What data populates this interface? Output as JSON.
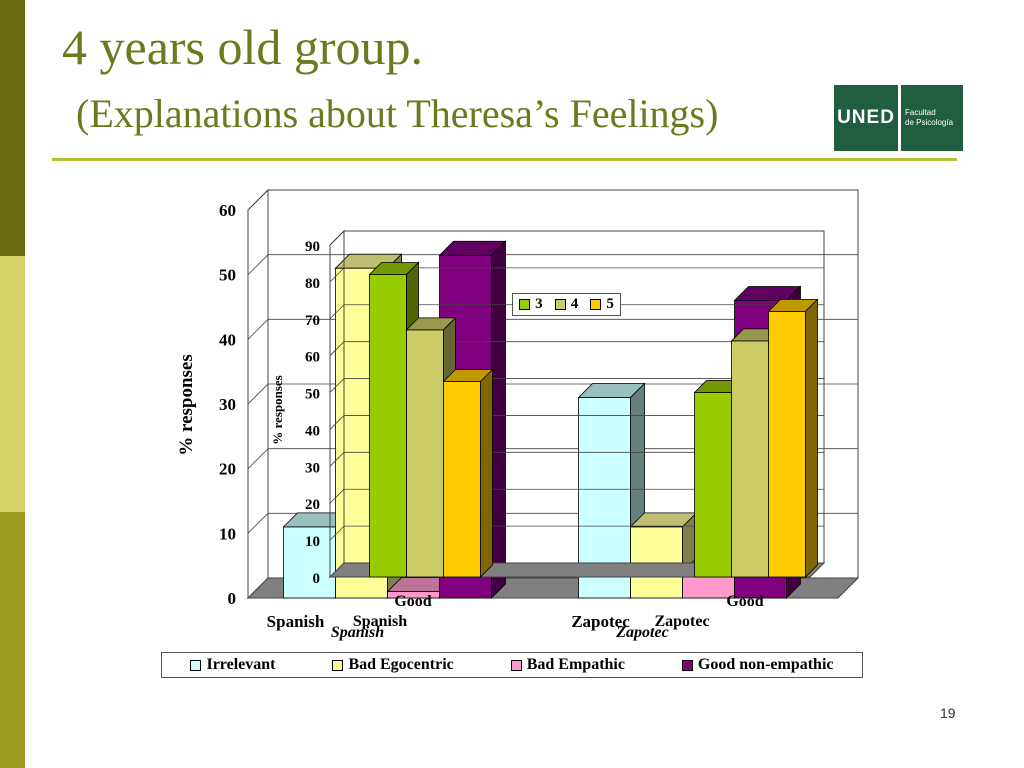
{
  "slide": {
    "title_line1": "4 years old group.",
    "title_line2": "(Explanations about Theresa’s Feelings)",
    "page_number": "19",
    "logo": {
      "mark": "UNED",
      "faculty_line1": "Facultad",
      "faculty_line2": "de Psicología"
    },
    "sidebar_colors": [
      "#6b6b0f",
      "#d4d46a",
      "#9a9a20"
    ],
    "accent_color": "#6b7a1e"
  },
  "chart_data": [
    {
      "type": "bar",
      "style": "3d-clustered",
      "categories": [
        "Spanish",
        "Zapotec"
      ],
      "category_labels_sub": [
        "Spanish",
        "Zapotec"
      ],
      "ylabel": "% responses",
      "ylim": [
        0,
        60
      ],
      "yticks": [
        0,
        10,
        20,
        30,
        40,
        50,
        60
      ],
      "grid": true,
      "legend_position": "bottom",
      "series": [
        {
          "name": "Irrelevant",
          "color": "#ccffff",
          "values": [
            11,
            31
          ]
        },
        {
          "name": "Bad Egocentric",
          "color": "#ffff99",
          "values": [
            51,
            11
          ]
        },
        {
          "name": "Bad Empathic",
          "color": "#ff99cc",
          "values": [
            1,
            4
          ]
        },
        {
          "name": "Good non-empathic",
          "color": "#800080",
          "values": [
            53,
            46
          ]
        }
      ]
    },
    {
      "type": "bar",
      "style": "3d-clustered",
      "categories": [
        "Good Spanish",
        "Good Zapotec"
      ],
      "ylabel": "% responses",
      "ylim": [
        0,
        90
      ],
      "yticks": [
        0,
        10,
        20,
        30,
        40,
        50,
        60,
        70,
        80,
        90
      ],
      "grid": true,
      "legend_position": "top-right",
      "series": [
        {
          "name": "3",
          "color": "#99cc00",
          "values": [
            82,
            50
          ]
        },
        {
          "name": "4",
          "color": "#cccc66",
          "values": [
            67,
            64
          ]
        },
        {
          "name": "5",
          "color": "#ffcc00",
          "values": [
            53,
            72
          ]
        }
      ]
    }
  ]
}
